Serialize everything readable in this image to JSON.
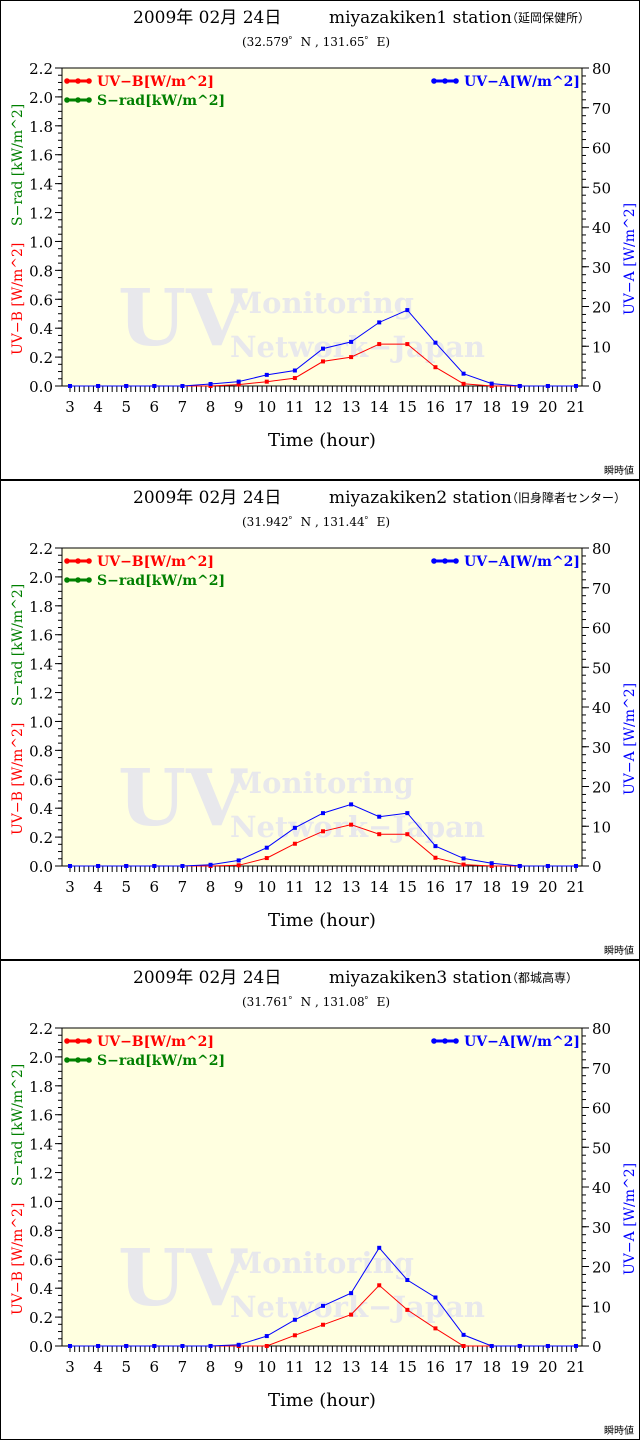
{
  "common": {
    "legend_uvb": "UV−B[W/m^2]",
    "legend_srad": "S−rad[kW/m^2]",
    "legend_uva": "UV−A[W/m^2]",
    "ylabel_uvb": "UV−B [W/m^2]",
    "ylabel_srad": "S−rad [kW/m^2]",
    "ylabel_uva": "UV−A [W/m^2]",
    "xlabel": "Time (hour)",
    "footnote": "瞬時値",
    "watermark_line1": "UV",
    "watermark_line2": "Monitoring",
    "watermark_line3": "Network−Japan",
    "colors": {
      "uvb": "#ff0000",
      "srad": "#008000",
      "uva": "#0000ff",
      "plot_bg": "#ffffe0",
      "watermark": "#e8e8ec"
    }
  },
  "chart_data": [
    {
      "type": "line",
      "date": "2009年 02月 24日",
      "station": "miyazakiken1 station",
      "station_jp": "（延岡保健所）",
      "coords": "(32.579゜N , 131.65゜E)",
      "x": [
        3,
        4,
        5,
        6,
        7,
        8,
        9,
        10,
        11,
        12,
        13,
        14,
        15,
        16,
        17,
        18,
        19,
        20,
        21
      ],
      "xlim": [
        3,
        21
      ],
      "ylim_left": [
        0,
        2.2
      ],
      "ylim_right": [
        0,
        80
      ],
      "left_ticks": [
        "0.0",
        "0.2",
        "0.4",
        "0.6",
        "0.8",
        "1.0",
        "1.2",
        "1.4",
        "1.6",
        "1.8",
        "2.0",
        "2.2"
      ],
      "right_ticks": [
        "0",
        "10",
        "20",
        "30",
        "40",
        "50",
        "60",
        "70",
        "80"
      ],
      "series": [
        {
          "name": "UV-B",
          "axis": "left",
          "values": [
            0,
            0,
            0,
            0,
            0,
            0,
            0.01,
            0.03,
            0.055,
            0.17,
            0.2,
            0.29,
            0.29,
            0.13,
            0.015,
            0,
            0,
            0,
            0
          ]
        },
        {
          "name": "UV-A",
          "axis": "right",
          "values": [
            0,
            0,
            0,
            0,
            0,
            0.5,
            1.1,
            2.8,
            3.9,
            9.4,
            11.1,
            16.0,
            19.1,
            10.9,
            3.1,
            0.6,
            0,
            0,
            0
          ]
        }
      ]
    },
    {
      "type": "line",
      "date": "2009年 02月 24日",
      "station": "miyazakiken2 station",
      "station_jp": "（旧身障者センター）",
      "coords": "(31.942゜N , 131.44゜E)",
      "x": [
        3,
        4,
        5,
        6,
        7,
        8,
        9,
        10,
        11,
        12,
        13,
        14,
        15,
        16,
        17,
        18,
        19,
        20,
        21
      ],
      "xlim": [
        3,
        21
      ],
      "ylim_left": [
        0,
        2.2
      ],
      "ylim_right": [
        0,
        80
      ],
      "left_ticks": [
        "0.0",
        "0.2",
        "0.4",
        "0.6",
        "0.8",
        "1.0",
        "1.2",
        "1.4",
        "1.6",
        "1.8",
        "2.0",
        "2.2"
      ],
      "right_ticks": [
        "0",
        "10",
        "20",
        "30",
        "40",
        "50",
        "60",
        "70",
        "80"
      ],
      "series": [
        {
          "name": "UV-B",
          "axis": "left",
          "values": [
            0,
            0,
            0,
            0,
            0,
            0,
            0.005,
            0.055,
            0.154,
            0.24,
            0.286,
            0.22,
            0.22,
            0.057,
            0.01,
            0,
            0,
            0,
            0
          ]
        },
        {
          "name": "UV-A",
          "axis": "right",
          "values": [
            0,
            0,
            0,
            0,
            0,
            0.3,
            1.4,
            4.6,
            9.6,
            13.3,
            15.5,
            12.4,
            13.3,
            5.0,
            1.9,
            0.7,
            0,
            0,
            0
          ]
        }
      ]
    },
    {
      "type": "line",
      "date": "2009年 02月 24日",
      "station": "miyazakiken3 station",
      "station_jp": "（都城高専）",
      "coords": "(31.761゜N , 131.08゜E)",
      "x": [
        3,
        4,
        5,
        6,
        7,
        8,
        9,
        10,
        11,
        12,
        13,
        14,
        15,
        16,
        17,
        18,
        19,
        20,
        21
      ],
      "xlim": [
        3,
        21
      ],
      "ylim_left": [
        0,
        2.2
      ],
      "ylim_right": [
        0,
        80
      ],
      "left_ticks": [
        "0.0",
        "0.2",
        "0.4",
        "0.6",
        "0.8",
        "1.0",
        "1.2",
        "1.4",
        "1.6",
        "1.8",
        "2.0",
        "2.2"
      ],
      "right_ticks": [
        "0",
        "10",
        "20",
        "30",
        "40",
        "50",
        "60",
        "70",
        "80"
      ],
      "series": [
        {
          "name": "UV-B",
          "axis": "left",
          "values": [
            0,
            0,
            0,
            0,
            0,
            0,
            0,
            0,
            0.074,
            0.147,
            0.217,
            0.42,
            0.25,
            0.122,
            0,
            0,
            0,
            0,
            0
          ]
        },
        {
          "name": "UV-A",
          "axis": "right",
          "values": [
            0,
            0,
            0,
            0,
            0,
            0,
            0.3,
            2.5,
            6.6,
            10.1,
            13.3,
            24.7,
            16.6,
            12.2,
            2.8,
            0,
            0,
            0,
            0
          ]
        }
      ]
    }
  ]
}
